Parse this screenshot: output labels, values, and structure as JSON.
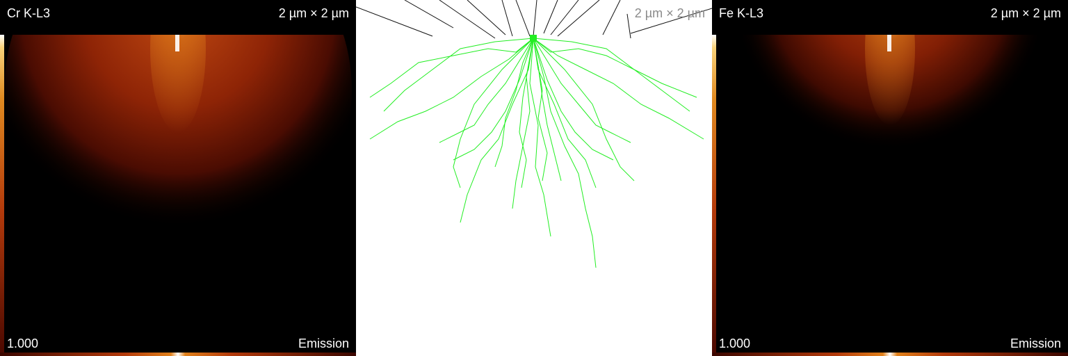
{
  "panels": [
    {
      "element_label": "Cr K-L3",
      "scale_label": "2 µm × 2 µm",
      "range_label": "1.000",
      "mode_label": "Emission"
    },
    {
      "scale_label": "2 µm × 2 µm"
    },
    {
      "element_label": "Fe K-L3",
      "scale_label": "2 µm × 2 µm",
      "range_label": "1.000",
      "mode_label": "Emission"
    }
  ],
  "colors": {
    "heat_core": "#ffffff",
    "heat_mid": "#b33a0b",
    "trajectory": "#22ee22",
    "incident_beam": "#111111"
  }
}
